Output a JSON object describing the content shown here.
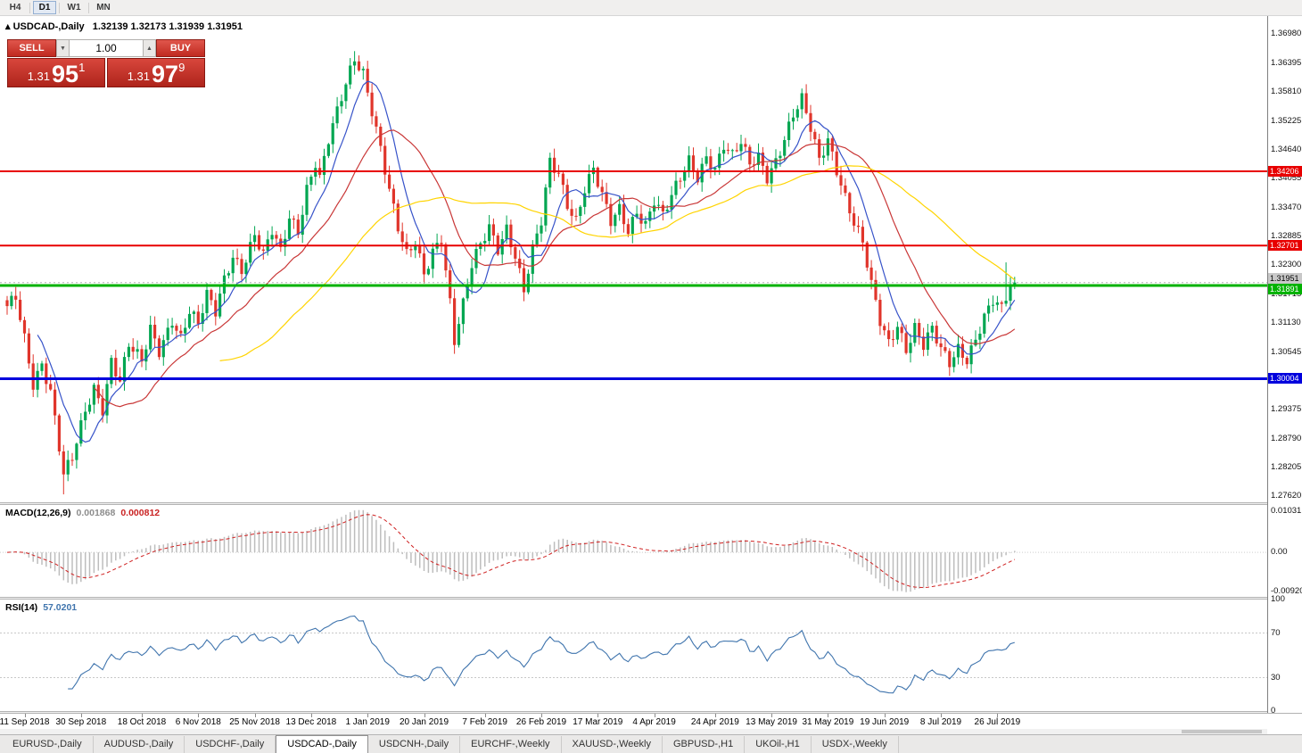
{
  "toolbar": {
    "timeframes": [
      "H4",
      "D1",
      "W1",
      "MN"
    ],
    "active_timeframe": "D1",
    "close_icon": "✕"
  },
  "chart": {
    "icon": "▴",
    "title": "USDCAD-,Daily",
    "ohlc_text": "1.32139 1.32173 1.31939 1.31951",
    "trade_panel": {
      "sell_label": "SELL",
      "buy_label": "BUY",
      "volume": "1.00",
      "spin_down": "▼",
      "spin_up": "▲",
      "sell_price_head": "1.31",
      "sell_price_big": "95",
      "sell_price_sup": "1",
      "buy_price_head": "1.31",
      "buy_price_big": "97",
      "buy_price_sup": "9"
    },
    "hlines": [
      {
        "price": 1.34206,
        "label": "1.34206",
        "color": "#e80000",
        "width": 2,
        "tag_dy": 0
      },
      {
        "price": 1.32701,
        "label": "1.32701",
        "color": "#e80000",
        "width": 2,
        "tag_dy": 0
      },
      {
        "price": 1.31891,
        "label": "1.31891",
        "color": "#00b200",
        "width": 3,
        "tag_dy": 4
      },
      {
        "price": 1.30004,
        "label": "1.30004",
        "color": "#0000dd",
        "width": 3,
        "tag_dy": 0
      }
    ],
    "current_price": {
      "value": 1.31951,
      "label": "1.31951",
      "tag_dy": -5
    }
  },
  "price_axis": {
    "top_price": 1.3735,
    "bottom_price": 1.275,
    "labels": [
      "1.36980",
      "1.36395",
      "1.35810",
      "1.35225",
      "1.34640",
      "1.34055",
      "1.33470",
      "1.32885",
      "1.32300",
      "1.31715",
      "1.31130",
      "1.30545",
      "1.29960",
      "1.29375",
      "1.28790",
      "1.28205",
      "1.27620"
    ]
  },
  "time_axis": {
    "labels": [
      {
        "text": "11 Sep 2018",
        "index": 4
      },
      {
        "text": "30 Sep 2018",
        "index": 17
      },
      {
        "text": "18 Oct 2018",
        "index": 31
      },
      {
        "text": "6 Nov 2018",
        "index": 44
      },
      {
        "text": "25 Nov 2018",
        "index": 57
      },
      {
        "text": "13 Dec 2018",
        "index": 70
      },
      {
        "text": "1 Jan 2019",
        "index": 83
      },
      {
        "text": "20 Jan 2019",
        "index": 96
      },
      {
        "text": "7 Feb 2019",
        "index": 110
      },
      {
        "text": "26 Feb 2019",
        "index": 123
      },
      {
        "text": "17 Mar 2019",
        "index": 136
      },
      {
        "text": "4 Apr 2019",
        "index": 149
      },
      {
        "text": "24 Apr 2019",
        "index": 163
      },
      {
        "text": "13 May 2019",
        "index": 176
      },
      {
        "text": "31 May 2019",
        "index": 189
      },
      {
        "text": "19 Jun 2019",
        "index": 202
      },
      {
        "text": "8 Jul 2019",
        "index": 215
      },
      {
        "text": "26 Jul 2019",
        "index": 228
      }
    ]
  },
  "indicators": {
    "macd": {
      "name": "MACD(12,26,9)",
      "value_main": "0.001868",
      "value_signal": "0.000812",
      "axis_top": "0.01031",
      "axis_zero": "0.00",
      "axis_bottom": "-0.00920",
      "fast": 12,
      "slow": 26,
      "signal": 9,
      "histogram_color": "#bdbdbd",
      "signal_color": "#cf2020"
    },
    "rsi": {
      "name": "RSI(14)",
      "value": "57.0201",
      "period": 14,
      "levels": [
        70,
        30
      ],
      "axis_labels": [
        "100",
        "70",
        "30",
        "0"
      ],
      "line_color": "#3f74ad"
    }
  },
  "tabs": {
    "items": [
      "EURUSD-,Daily",
      "AUDUSD-,Daily",
      "USDCHF-,Daily",
      "USDCAD-,Daily",
      "USDCNH-,Daily",
      "EURCHF-,Weekly",
      "XAUUSD-,Weekly",
      "GBPUSD-,H1",
      "UKOil-,H1",
      "USDX-,Weekly"
    ],
    "active_index": 3
  },
  "chart_data": {
    "type": "candlestick",
    "symbol": "USDCAD",
    "timeframe": "Daily",
    "count": 233,
    "last_close": 1.31951,
    "up_color": "#00a651",
    "down_color": "#e0352b",
    "price_range": {
      "top": 1.3735,
      "bottom": 1.275
    },
    "axis_step": 0.00585,
    "waypoints": [
      [
        0,
        1.314
      ],
      [
        2,
        1.3165
      ],
      [
        4,
        1.3085
      ],
      [
        6,
        1.2995
      ],
      [
        8,
        1.3035
      ],
      [
        10,
        1.2975
      ],
      [
        13,
        1.28
      ],
      [
        15,
        1.2835
      ],
      [
        18,
        1.2935
      ],
      [
        20,
        1.2985
      ],
      [
        22,
        1.2945
      ],
      [
        24,
        1.304
      ],
      [
        26,
        1.2995
      ],
      [
        28,
        1.3065
      ],
      [
        31,
        1.303
      ],
      [
        33,
        1.31
      ],
      [
        35,
        1.306
      ],
      [
        38,
        1.3125
      ],
      [
        40,
        1.3085
      ],
      [
        42,
        1.3135
      ],
      [
        44,
        1.3105
      ],
      [
        46,
        1.3165
      ],
      [
        48,
        1.3135
      ],
      [
        50,
        1.3205
      ],
      [
        52,
        1.3255
      ],
      [
        54,
        1.3225
      ],
      [
        57,
        1.329
      ],
      [
        59,
        1.3245
      ],
      [
        61,
        1.3295
      ],
      [
        63,
        1.3255
      ],
      [
        65,
        1.333
      ],
      [
        67,
        1.3305
      ],
      [
        69,
        1.339
      ],
      [
        71,
        1.344
      ],
      [
        72,
        1.3405
      ],
      [
        74,
        1.348
      ],
      [
        76,
        1.3535
      ],
      [
        78,
        1.3595
      ],
      [
        80,
        1.365
      ],
      [
        82,
        1.3625
      ],
      [
        84,
        1.355
      ],
      [
        86,
        1.347
      ],
      [
        88,
        1.338
      ],
      [
        90,
        1.33
      ],
      [
        92,
        1.3245
      ],
      [
        94,
        1.3275
      ],
      [
        96,
        1.3215
      ],
      [
        98,
        1.3265
      ],
      [
        100,
        1.329
      ],
      [
        102,
        1.3155
      ],
      [
        103,
        1.3075
      ],
      [
        105,
        1.3145
      ],
      [
        107,
        1.3225
      ],
      [
        109,
        1.327
      ],
      [
        111,
        1.331
      ],
      [
        113,
        1.327
      ],
      [
        115,
        1.331
      ],
      [
        117,
        1.325
      ],
      [
        119,
        1.3175
      ],
      [
        121,
        1.3255
      ],
      [
        123,
        1.3315
      ],
      [
        125,
        1.344
      ],
      [
        127,
        1.342
      ],
      [
        129,
        1.336
      ],
      [
        131,
        1.3325
      ],
      [
        133,
        1.3385
      ],
      [
        135,
        1.342
      ],
      [
        137,
        1.3365
      ],
      [
        139,
        1.3315
      ],
      [
        141,
        1.3345
      ],
      [
        143,
        1.3305
      ],
      [
        145,
        1.3345
      ],
      [
        147,
        1.3315
      ],
      [
        149,
        1.336
      ],
      [
        151,
        1.3325
      ],
      [
        153,
        1.3365
      ],
      [
        155,
        1.3405
      ],
      [
        157,
        1.3445
      ],
      [
        159,
        1.3415
      ],
      [
        161,
        1.3455
      ],
      [
        163,
        1.3425
      ],
      [
        165,
        1.347
      ],
      [
        167,
        1.3445
      ],
      [
        169,
        1.3475
      ],
      [
        171,
        1.3435
      ],
      [
        173,
        1.3455
      ],
      [
        175,
        1.3415
      ],
      [
        177,
        1.3445
      ],
      [
        179,
        1.3485
      ],
      [
        181,
        1.353
      ],
      [
        183,
        1.356
      ],
      [
        185,
        1.3505
      ],
      [
        187,
        1.3445
      ],
      [
        189,
        1.349
      ],
      [
        191,
        1.343
      ],
      [
        193,
        1.337
      ],
      [
        195,
        1.3315
      ],
      [
        197,
        1.327
      ],
      [
        199,
        1.3185
      ],
      [
        201,
        1.3115
      ],
      [
        203,
        1.3075
      ],
      [
        205,
        1.3115
      ],
      [
        207,
        1.3065
      ],
      [
        209,
        1.3105
      ],
      [
        211,
        1.3065
      ],
      [
        213,
        1.3095
      ],
      [
        215,
        1.3055
      ],
      [
        217,
        1.3032
      ],
      [
        219,
        1.3065
      ],
      [
        221,
        1.3045
      ],
      [
        223,
        1.3085
      ],
      [
        225,
        1.3125
      ],
      [
        227,
        1.3155
      ],
      [
        229,
        1.3135
      ],
      [
        231,
        1.3185
      ],
      [
        232,
        1.3192
      ]
    ],
    "spikes": [
      {
        "i": 13,
        "low": 1.2766
      },
      {
        "i": 80,
        "high": 1.3664
      },
      {
        "i": 103,
        "low": 1.3052
      },
      {
        "i": 183,
        "high": 1.3572
      },
      {
        "i": 217,
        "low": 1.3018
      },
      {
        "i": 230,
        "high": 1.3236
      }
    ],
    "wobble": {
      "a1": 0.0011,
      "f1": 1.93,
      "a2": 0.0008,
      "f2": 0.41,
      "wick": 0.0017
    },
    "moving_averages": [
      {
        "period": 8,
        "color": "#3753c9"
      },
      {
        "period": 21,
        "color": "#c93737"
      },
      {
        "period": 50,
        "color": "#ffd400"
      }
    ]
  }
}
